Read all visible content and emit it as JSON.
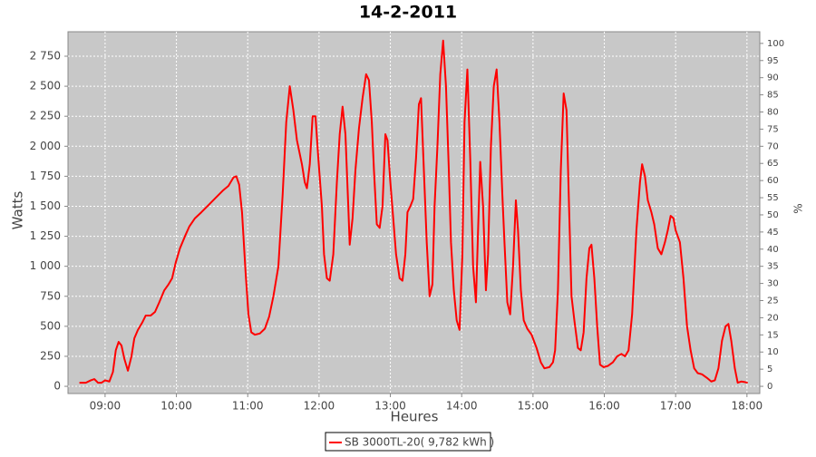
{
  "chart_data": {
    "type": "line",
    "title": "14-2-2011",
    "x_label": "Heures",
    "y_label": "Watts",
    "y2_label": "%",
    "x": [
      8.64,
      8.73,
      8.8,
      8.85,
      8.9,
      8.95,
      9.0,
      9.06,
      9.11,
      9.15,
      9.19,
      9.23,
      9.27,
      9.32,
      9.37,
      9.41,
      9.46,
      9.52,
      9.57,
      9.64,
      9.7,
      9.76,
      9.83,
      9.89,
      9.94,
      9.99,
      10.05,
      10.12,
      10.18,
      10.26,
      10.35,
      10.45,
      10.55,
      10.65,
      10.73,
      10.8,
      10.84,
      10.88,
      10.92,
      10.97,
      11.01,
      11.05,
      11.1,
      11.17,
      11.24,
      11.3,
      11.36,
      11.43,
      11.49,
      11.54,
      11.59,
      11.64,
      11.69,
      11.76,
      11.8,
      11.83,
      11.87,
      11.91,
      11.95,
      11.99,
      12.04,
      12.07,
      12.11,
      12.15,
      12.2,
      12.25,
      12.29,
      12.33,
      12.37,
      12.41,
      12.43,
      12.47,
      12.51,
      12.56,
      12.61,
      12.66,
      12.7,
      12.74,
      12.77,
      12.81,
      12.85,
      12.89,
      12.93,
      12.96,
      13.0,
      13.04,
      13.08,
      13.13,
      13.17,
      13.21,
      13.24,
      13.28,
      13.32,
      13.36,
      13.4,
      13.43,
      13.47,
      13.51,
      13.55,
      13.59,
      13.62,
      13.66,
      13.7,
      13.74,
      13.78,
      13.82,
      13.85,
      13.89,
      13.93,
      13.97,
      14.01,
      14.04,
      14.08,
      14.12,
      14.16,
      14.2,
      14.23,
      14.26,
      14.3,
      14.34,
      14.37,
      14.41,
      14.45,
      14.49,
      14.53,
      14.57,
      14.6,
      14.64,
      14.68,
      14.72,
      14.76,
      14.79,
      14.83,
      14.87,
      14.92,
      14.98,
      15.05,
      15.11,
      15.16,
      15.23,
      15.28,
      15.31,
      15.35,
      15.39,
      15.43,
      15.47,
      15.51,
      15.54,
      15.58,
      15.63,
      15.67,
      15.71,
      15.75,
      15.79,
      15.82,
      15.86,
      15.9,
      15.94,
      15.99,
      16.05,
      16.12,
      16.18,
      16.24,
      16.29,
      16.34,
      16.39,
      16.45,
      16.5,
      16.53,
      16.57,
      16.61,
      16.66,
      16.7,
      16.75,
      16.8,
      16.85,
      16.89,
      16.93,
      16.97,
      17.0,
      17.06,
      17.11,
      17.16,
      17.21,
      17.26,
      17.31,
      17.37,
      17.44,
      17.5,
      17.55,
      17.6,
      17.65,
      17.7,
      17.74,
      17.78,
      17.83,
      17.87,
      17.92,
      17.97,
      18.01
    ],
    "series": [
      {
        "name": "SB 3000TL-20( 9,782 kWh )",
        "color": "#ff0000",
        "values": [
          30,
          30,
          50,
          60,
          30,
          30,
          50,
          40,
          120,
          300,
          370,
          340,
          230,
          130,
          250,
          400,
          470,
          530,
          590,
          590,
          620,
          700,
          800,
          850,
          900,
          1030,
          1150,
          1250,
          1330,
          1400,
          1450,
          1510,
          1570,
          1630,
          1670,
          1740,
          1750,
          1680,
          1450,
          950,
          600,
          450,
          430,
          440,
          480,
          580,
          750,
          1000,
          1600,
          2200,
          2500,
          2300,
          2050,
          1850,
          1700,
          1650,
          1850,
          2250,
          2250,
          1900,
          1500,
          1100,
          900,
          880,
          1100,
          1700,
          2100,
          2330,
          2100,
          1500,
          1180,
          1400,
          1800,
          2150,
          2400,
          2600,
          2550,
          2200,
          1800,
          1350,
          1320,
          1500,
          2100,
          2050,
          1700,
          1400,
          1100,
          900,
          880,
          1100,
          1450,
          1500,
          1560,
          1900,
          2350,
          2400,
          1800,
          1200,
          750,
          850,
          1500,
          2000,
          2600,
          2880,
          2500,
          1800,
          1200,
          800,
          550,
          470,
          1100,
          2200,
          2640,
          1900,
          1000,
          700,
          1300,
          1870,
          1500,
          800,
          1100,
          2000,
          2500,
          2640,
          2200,
          1600,
          1200,
          700,
          600,
          1000,
          1550,
          1300,
          800,
          550,
          480,
          430,
          320,
          200,
          150,
          160,
          200,
          300,
          800,
          1800,
          2440,
          2300,
          1400,
          750,
          550,
          320,
          300,
          450,
          900,
          1150,
          1180,
          900,
          500,
          180,
          160,
          170,
          200,
          250,
          270,
          250,
          300,
          600,
          1300,
          1700,
          1850,
          1750,
          1550,
          1450,
          1350,
          1150,
          1100,
          1200,
          1300,
          1420,
          1400,
          1300,
          1200,
          900,
          500,
          300,
          150,
          110,
          100,
          70,
          40,
          50,
          150,
          380,
          500,
          520,
          380,
          150,
          30,
          40,
          35,
          30
        ]
      }
    ],
    "xlim": [
      8.48,
      18.18
    ],
    "xticks": [
      {
        "value": 9,
        "label": "09:00"
      },
      {
        "value": 10,
        "label": "10:00"
      },
      {
        "value": 11,
        "label": "11:00"
      },
      {
        "value": 12,
        "label": "12:00"
      },
      {
        "value": 13,
        "label": "13:00"
      },
      {
        "value": 14,
        "label": "14:00"
      },
      {
        "value": 15,
        "label": "15:00"
      },
      {
        "value": 16,
        "label": "16:00"
      },
      {
        "value": 17,
        "label": "17:00"
      },
      {
        "value": 18,
        "label": "18:00"
      }
    ],
    "ylim": [
      -60,
      2954
    ],
    "yticks": [
      0,
      250,
      500,
      750,
      {
        "value": 1000,
        "label": "1 000"
      },
      {
        "value": 1250,
        "label": "1 250"
      },
      {
        "value": 1500,
        "label": "1 500"
      },
      {
        "value": 1750,
        "label": "1 750"
      },
      {
        "value": 2000,
        "label": "2 000"
      },
      {
        "value": 2250,
        "label": "2 250"
      },
      {
        "value": 2500,
        "label": "2 500"
      },
      {
        "value": 2750,
        "label": "2 750"
      }
    ],
    "y2lim": [
      -2.1,
      103.4
    ],
    "y2ticks": [
      0,
      5,
      10,
      15,
      20,
      25,
      30,
      35,
      40,
      45,
      50,
      55,
      60,
      65,
      70,
      75,
      80,
      85,
      90,
      95,
      100
    ],
    "grid": true
  }
}
